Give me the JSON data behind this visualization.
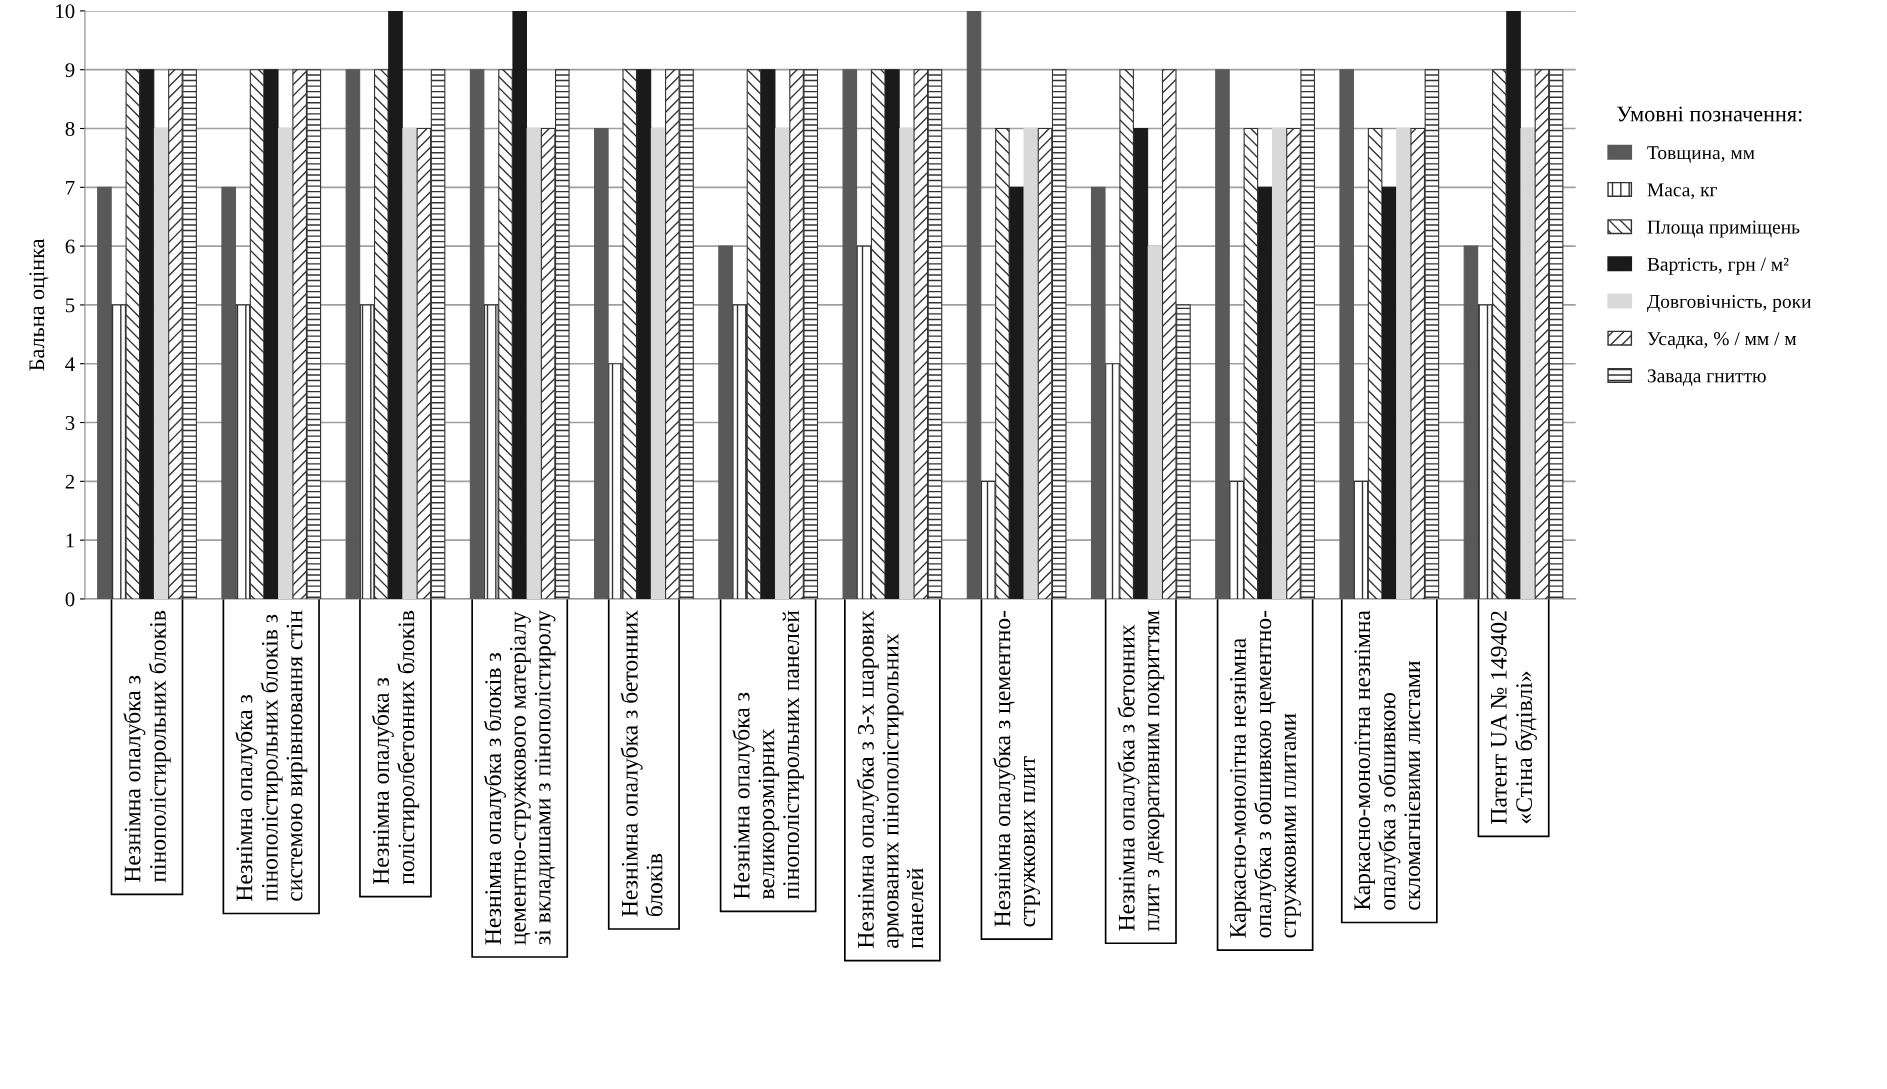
{
  "chart_data": {
    "type": "bar",
    "ylabel": "Бальна оцінка",
    "legend_title": "Умовні позначення:",
    "categories": [
      "Незнімна опалубка з\nпінополістирольних блоків",
      "Незнімна опалубка з\nпінополістирольних блоків з\nсистемою вирівнювання стін",
      "Незнімна опалубка з\nполістиролбетонних блоків",
      "Незнімна опалубка з блоків з\nцементно-стружкового матеріалу\nзі вкладишами з пінополістиролу",
      "Незнімна опалубка з бетонних\nблоків",
      "Незнімна опалубка з\nвеликорозмірних\nпінополістирольних панелей",
      "Незнімна опалубка з 3-х шарових\nармованих пінополістирольних\nпанелей",
      "Незнімна опалубка з цементно-\nстружкових плит",
      "Незнімна опалубка з бетонних\nплит з декоративним покриттям",
      "Каркасно-монолітна незнімна\nопалубка з обшивкою цементно-\nстружковими плитами",
      "Каркасно-монолітна незнімна\nопалубка з обшивкою\nскломагнієвими листами",
      "Патент UA № 149402\n«Стіна будівлі»"
    ],
    "series": [
      {
        "name": "Товщина, мм",
        "color": "#595959",
        "values": [
          7,
          7,
          9,
          9,
          8,
          6,
          9,
          10,
          7,
          9,
          9,
          6
        ]
      },
      {
        "name": "Маса, кг",
        "color": "#333333",
        "values": [
          5,
          5,
          5,
          5,
          4,
          5,
          6,
          2,
          4,
          2,
          2,
          5
        ]
      },
      {
        "name": "Площа приміщень",
        "color": "#333333",
        "values": [
          9,
          9,
          9,
          9,
          9,
          9,
          9,
          8,
          9,
          8,
          8,
          9
        ]
      },
      {
        "name": "Вартість, грн / м²",
        "color": "#1a1a1a",
        "values": [
          9,
          9,
          10,
          10,
          9,
          9,
          9,
          7,
          8,
          7,
          7,
          10
        ]
      },
      {
        "name": "Довговічність, роки",
        "color": "#d9d9d9",
        "values": [
          8,
          8,
          8,
          8,
          8,
          8,
          8,
          8,
          6,
          8,
          8,
          8
        ]
      },
      {
        "name": "Усадка, % / мм / м",
        "color": "#333333",
        "values": [
          9,
          9,
          8,
          8,
          9,
          9,
          9,
          8,
          9,
          8,
          8,
          9
        ]
      },
      {
        "name": "Завада гниттю",
        "color": "#333333",
        "values": [
          9,
          9,
          9,
          9,
          9,
          9,
          9,
          9,
          5,
          9,
          9,
          9
        ]
      }
    ],
    "ylim": [
      0,
      10
    ],
    "yticks": [
      0,
      1,
      2,
      3,
      4,
      5,
      6,
      7,
      8,
      9,
      10
    ],
    "grid": "y",
    "legend": "right"
  }
}
